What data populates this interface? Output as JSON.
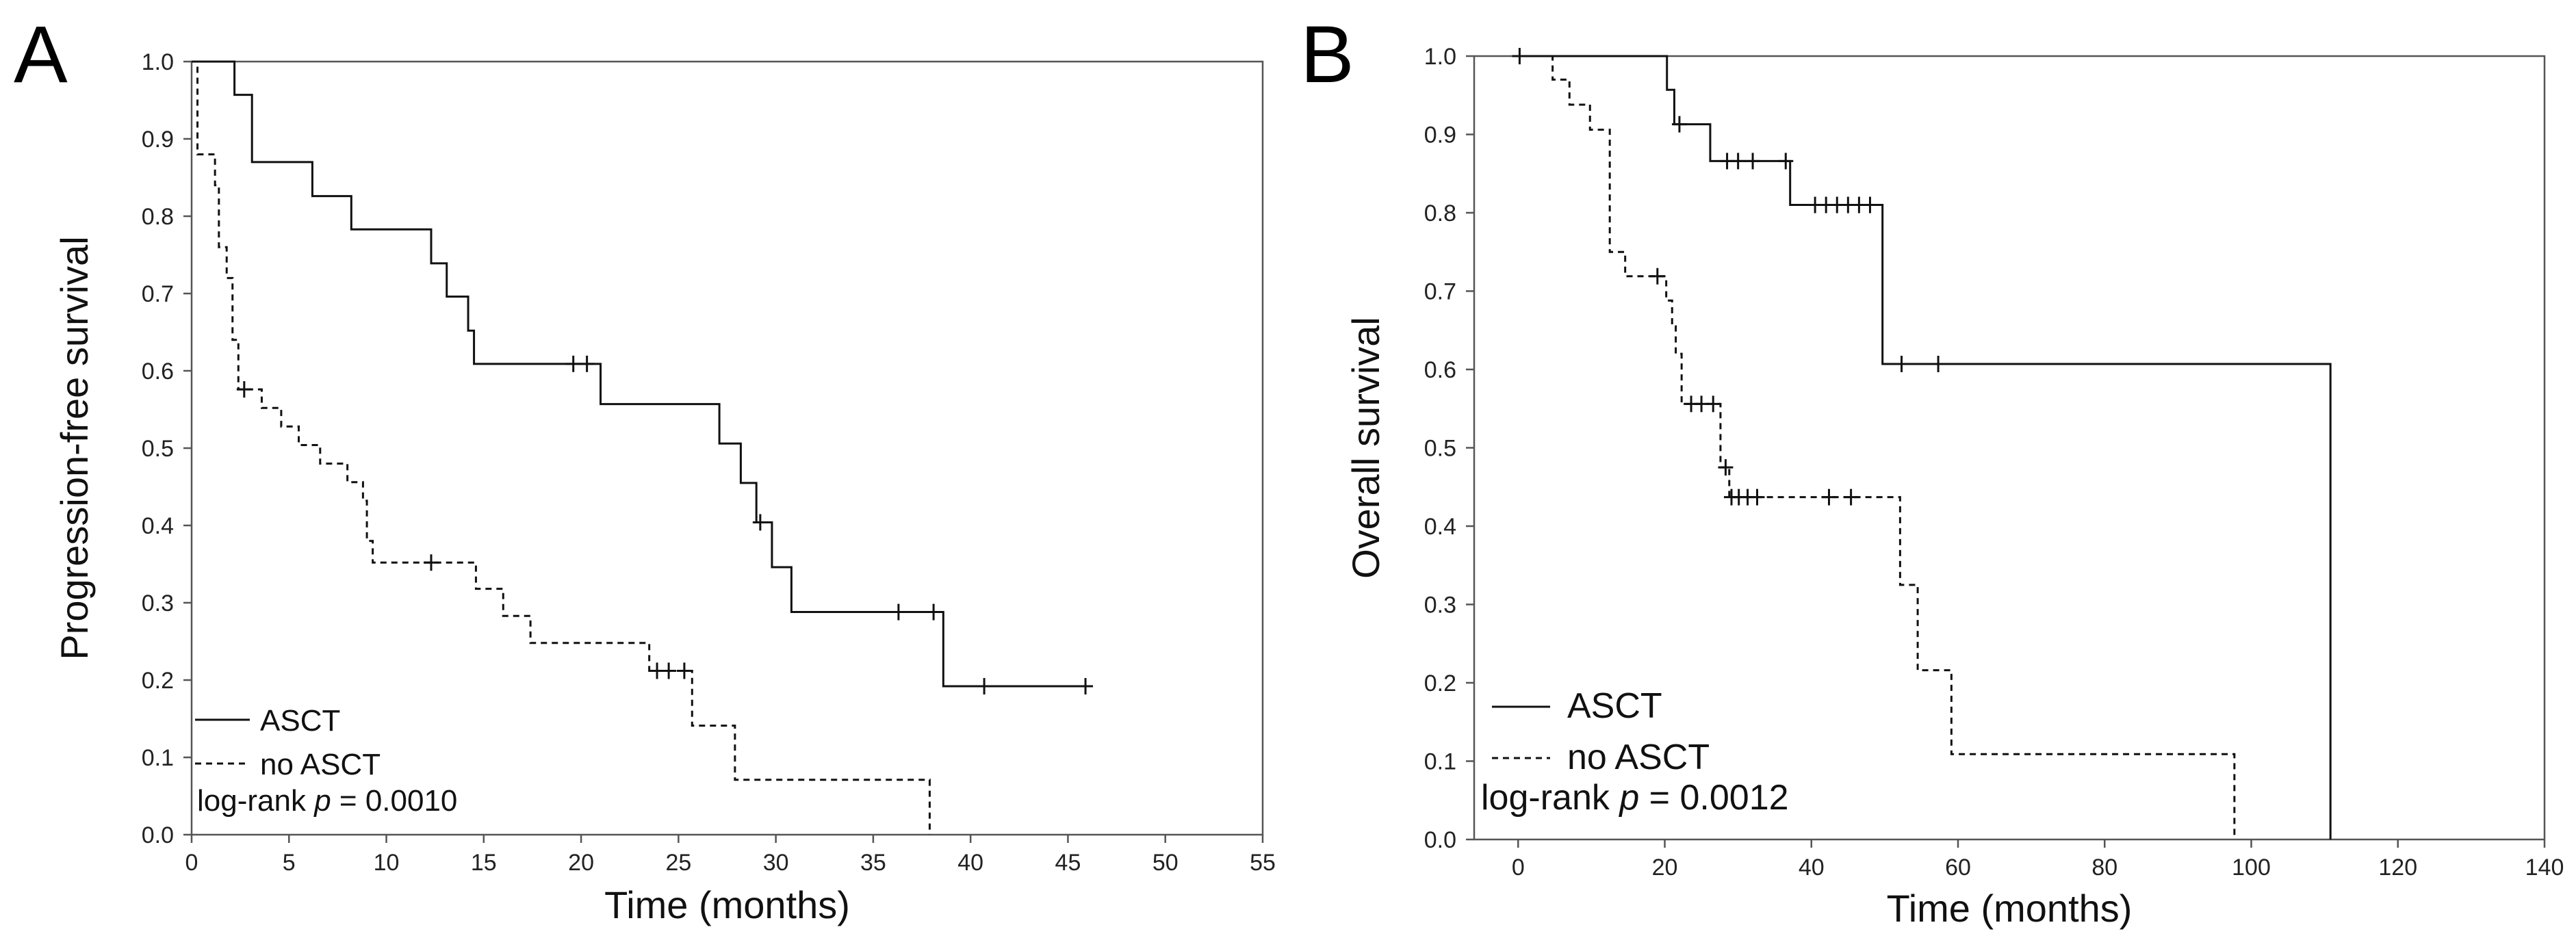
{
  "chart_data": [
    {
      "panel": "A",
      "type": "line",
      "subtype": "kaplan-meier",
      "xlabel": "Time (months)",
      "ylabel": "Progression-free survival",
      "xlim": [
        0,
        55
      ],
      "ylim": [
        0,
        1.0
      ],
      "xticks": [
        0,
        5,
        10,
        15,
        20,
        25,
        30,
        35,
        40,
        45,
        50,
        55
      ],
      "yticks": [
        0.0,
        0.1,
        0.2,
        0.3,
        0.4,
        0.5,
        0.6,
        0.7,
        0.8,
        0.9,
        1.0
      ],
      "legend": [
        "ASCT",
        "no ASCT"
      ],
      "annotation_prefix": "log-rank ",
      "annotation_p": "p",
      "annotation_value": " = 0.0010",
      "series": [
        {
          "name": "ASCT",
          "style": "solid",
          "steps": [
            [
              0,
              1.0
            ],
            [
              2.2,
              0.957
            ],
            [
              3.1,
              0.87
            ],
            [
              6.2,
              0.826
            ],
            [
              8.2,
              0.783
            ],
            [
              12.3,
              0.739
            ],
            [
              13.1,
              0.696
            ],
            [
              14.2,
              0.652
            ],
            [
              14.5,
              0.609
            ],
            [
              21.0,
              0.557
            ],
            [
              27.1,
              0.506
            ],
            [
              28.2,
              0.455
            ],
            [
              29.0,
              0.404
            ],
            [
              29.8,
              0.346
            ],
            [
              30.8,
              0.288
            ],
            [
              38.6,
              0.192
            ],
            [
              46.0,
              0.192
            ]
          ],
          "censored": [
            [
              19.6,
              0.609
            ],
            [
              20.3,
              0.609
            ],
            [
              29.2,
              0.404
            ],
            [
              36.3,
              0.288
            ],
            [
              38.1,
              0.288
            ],
            [
              40.7,
              0.192
            ],
            [
              45.9,
              0.192
            ]
          ]
        },
        {
          "name": "no ASCT",
          "style": "dashed",
          "steps": [
            [
              0,
              1.0
            ],
            [
              0.3,
              0.88
            ],
            [
              1.2,
              0.84
            ],
            [
              1.4,
              0.76
            ],
            [
              1.8,
              0.72
            ],
            [
              2.1,
              0.64
            ],
            [
              2.4,
              0.576
            ],
            [
              3.6,
              0.552
            ],
            [
              4.6,
              0.528
            ],
            [
              5.5,
              0.504
            ],
            [
              6.6,
              0.48
            ],
            [
              8.0,
              0.456
            ],
            [
              8.8,
              0.432
            ],
            [
              9.0,
              0.38
            ],
            [
              9.3,
              0.352
            ],
            [
              14.6,
              0.318
            ],
            [
              16.0,
              0.283
            ],
            [
              17.4,
              0.248
            ],
            [
              23.5,
              0.212
            ],
            [
              25.7,
              0.141
            ],
            [
              27.9,
              0.071
            ],
            [
              37.9,
              0.071
            ],
            [
              37.9,
              0.0
            ]
          ],
          "censored": [
            [
              2.7,
              0.576
            ],
            [
              12.3,
              0.352
            ],
            [
              23.9,
              0.212
            ],
            [
              24.5,
              0.212
            ],
            [
              25.3,
              0.212
            ]
          ]
        }
      ]
    },
    {
      "panel": "B",
      "type": "line",
      "subtype": "kaplan-meier",
      "xlabel": "Time (months)",
      "ylabel": "Overall survival",
      "xlim": [
        -6,
        140
      ],
      "ylim": [
        0,
        1.0
      ],
      "xticks": [
        0,
        20,
        40,
        60,
        80,
        100,
        120,
        140
      ],
      "yticks": [
        0.0,
        0.1,
        0.2,
        0.3,
        0.4,
        0.5,
        0.6,
        0.7,
        0.8,
        0.9,
        1.0
      ],
      "legend": [
        "ASCT",
        "no ASCT"
      ],
      "annotation_prefix": "log-rank ",
      "annotation_p": "p",
      "annotation_value": " = 0.0012",
      "series": [
        {
          "name": "ASCT",
          "style": "solid",
          "steps": [
            [
              0,
              1.0
            ],
            [
              20.3,
              0.957
            ],
            [
              21.3,
              0.913
            ],
            [
              26.2,
              0.866
            ],
            [
              37.1,
              0.81
            ],
            [
              49.7,
              0.607
            ],
            [
              110.8,
              0.607
            ],
            [
              110.8,
              0.0
            ]
          ],
          "censored": [
            [
              0.2,
              1.0
            ],
            [
              22.0,
              0.913
            ],
            [
              28.5,
              0.866
            ],
            [
              30.0,
              0.866
            ],
            [
              32.0,
              0.866
            ],
            [
              36.5,
              0.866
            ],
            [
              40.5,
              0.81
            ],
            [
              42.0,
              0.81
            ],
            [
              43.5,
              0.81
            ],
            [
              45.0,
              0.81
            ],
            [
              46.5,
              0.81
            ],
            [
              48.0,
              0.81
            ],
            [
              52.3,
              0.607
            ],
            [
              57.3,
              0.607
            ]
          ]
        },
        {
          "name": "no ASCT",
          "style": "dashed",
          "steps": [
            [
              0,
              1.0
            ],
            [
              4.7,
              0.97
            ],
            [
              7.0,
              0.938
            ],
            [
              9.8,
              0.906
            ],
            [
              12.5,
              0.75
            ],
            [
              14.6,
              0.719
            ],
            [
              20.2,
              0.688
            ],
            [
              21.0,
              0.655
            ],
            [
              21.5,
              0.62
            ],
            [
              22.3,
              0.556
            ],
            [
              27.6,
              0.506
            ],
            [
              27.6,
              0.475
            ],
            [
              28.8,
              0.437
            ],
            [
              52.1,
              0.325
            ],
            [
              54.5,
              0.216
            ],
            [
              59.1,
              0.109
            ],
            [
              97.7,
              0.109
            ],
            [
              97.7,
              0.0
            ]
          ],
          "censored": [
            [
              19.0,
              0.719
            ],
            [
              23.6,
              0.556
            ],
            [
              25.0,
              0.556
            ],
            [
              26.6,
              0.556
            ],
            [
              28.3,
              0.475
            ],
            [
              29.1,
              0.437
            ],
            [
              30.1,
              0.437
            ],
            [
              31.3,
              0.437
            ],
            [
              32.6,
              0.437
            ],
            [
              42.4,
              0.437
            ],
            [
              45.4,
              0.437
            ]
          ]
        }
      ]
    }
  ]
}
